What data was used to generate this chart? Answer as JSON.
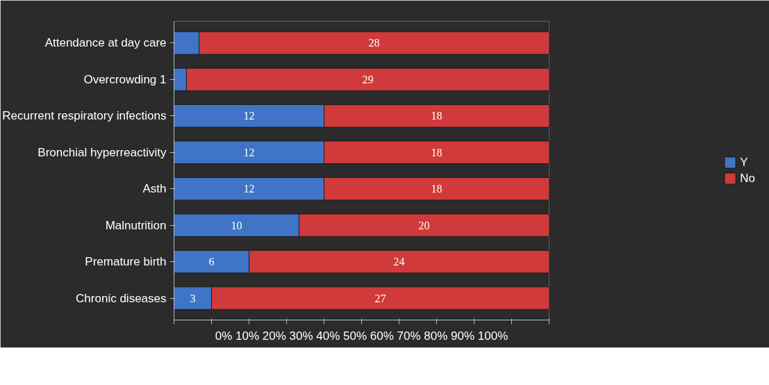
{
  "chart_data": {
    "type": "bar",
    "orientation": "horizontal",
    "stacked": true,
    "categories": [
      "Attendance at day care",
      "Overcrowding 1",
      "Recurrent respiratory infections",
      "Bronchial hyperreactivity",
      "Asth",
      "Malnutrition",
      "Premature birth",
      "Chronic diseases"
    ],
    "series": [
      {
        "name": "Y",
        "color": "#3f74c6",
        "values": [
          2,
          1,
          12,
          12,
          12,
          10,
          6,
          3
        ],
        "value_labels": [
          null,
          null,
          "12",
          "12",
          "12",
          "10",
          "6",
          "3"
        ]
      },
      {
        "name": "No",
        "color": "#d03a3a",
        "values": [
          28,
          29,
          18,
          18,
          18,
          20,
          24,
          27
        ],
        "value_labels": [
          "28",
          "29",
          "18",
          "18",
          "18",
          "20",
          "24",
          "27"
        ]
      }
    ],
    "xlim": [
      0,
      30
    ],
    "xticks": [
      {
        "value": 0,
        "label": null
      },
      {
        "value": 3,
        "label": null
      },
      {
        "value": 6,
        "label": null
      },
      {
        "value": 9,
        "label": null
      },
      {
        "value": 12,
        "label": null
      },
      {
        "value": 15,
        "label": null
      },
      {
        "value": 18,
        "label": null
      },
      {
        "value": 21,
        "label": null
      },
      {
        "value": 24,
        "label": null
      },
      {
        "value": 27,
        "label": null
      },
      {
        "value": 30,
        "label": null
      }
    ],
    "tick_labels": "y",
    "annotations": [
      "0% 10% 20% 30% 40% 50% 60% 70% 80% 90% 100%"
    ],
    "grid": false,
    "legend": "right"
  }
}
